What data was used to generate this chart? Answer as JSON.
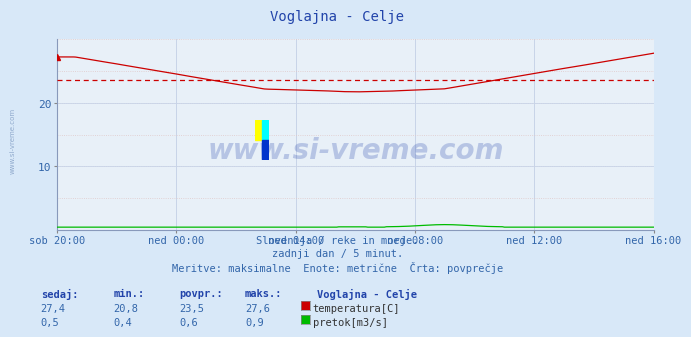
{
  "title": "Voglajna - Celje",
  "bg_color": "#d8e8f8",
  "plot_bg_color": "#e8f0f8",
  "grid_color_v": "#c8d4e8",
  "grid_color_h": "#e0c8c8",
  "x_labels": [
    "sob 20:00",
    "ned 00:00",
    "ned 04:00",
    "ned 08:00",
    "ned 12:00",
    "ned 16:00"
  ],
  "x_ticks_pos": [
    0,
    48,
    96,
    144,
    192,
    240
  ],
  "n_points": 289,
  "temp_min": 20.8,
  "temp_max": 27.6,
  "temp_avg": 23.5,
  "temp_current": 27.4,
  "flow_min": 0.4,
  "flow_max": 0.9,
  "flow_avg": 0.6,
  "flow_current": 0.5,
  "ylim": [
    0,
    30
  ],
  "yticks": [
    10,
    20
  ],
  "temp_color": "#cc0000",
  "flow_color": "#00bb00",
  "avg_line_color": "#cc0000",
  "watermark_text": "www.si-vreme.com",
  "footer_line1": "Slovenija / reke in morje.",
  "footer_line2": "zadnji dan / 5 minut.",
  "footer_line3": "Meritve: maksimalne  Enote: metrične  Črta: povprečje",
  "legend_title": "Voglajna - Celje",
  "label_temp": "temperatura[C]",
  "label_flow": "pretok[m3/s]",
  "stat_headers": [
    "sedaj:",
    "min.:",
    "povpr.:",
    "maks.:"
  ],
  "stat_temp": [
    "27,4",
    "20,8",
    "23,5",
    "27,6"
  ],
  "stat_flow": [
    "0,5",
    "0,4",
    "0,6",
    "0,9"
  ],
  "flow_scale_max": 30.0,
  "flow_real_max": 1.5
}
